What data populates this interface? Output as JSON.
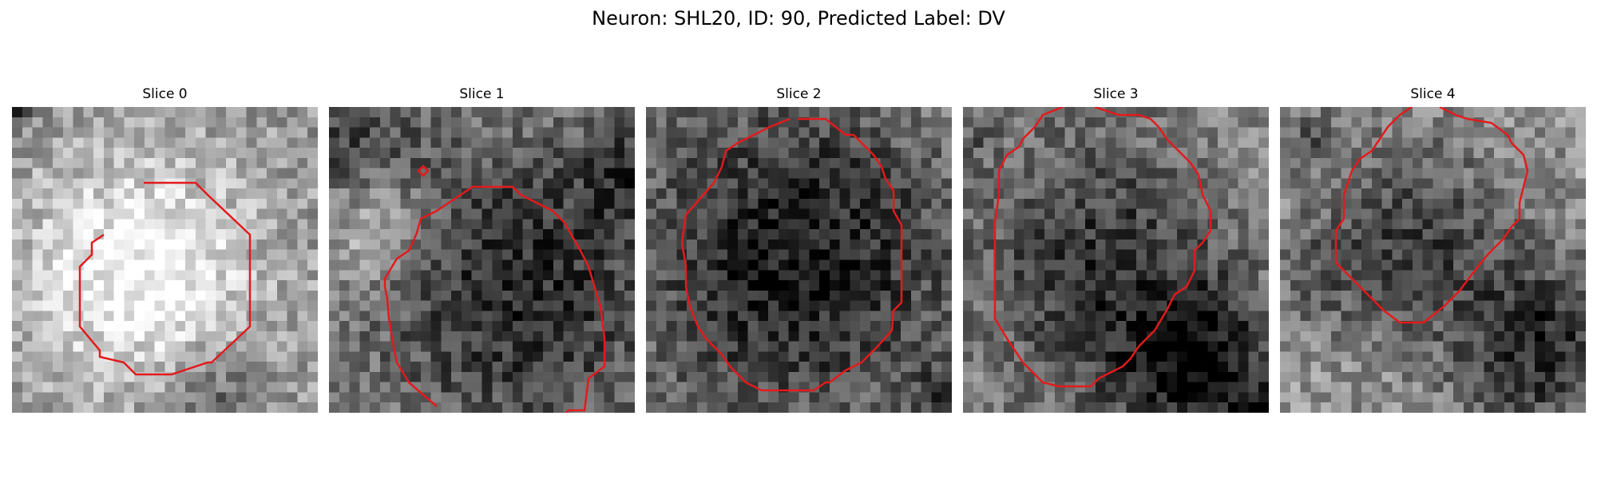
{
  "figure": {
    "title": "Neuron: SHL20, ID: 90, Predicted Label: DV"
  },
  "colors": {
    "contour": "#e31a1c",
    "colormap": "grayscale"
  },
  "slices": [
    {
      "title": "Slice 0"
    },
    {
      "title": "Slice 1"
    },
    {
      "title": "Slice 2"
    },
    {
      "title": "Slice 3"
    },
    {
      "title": "Slice 4"
    }
  ]
}
